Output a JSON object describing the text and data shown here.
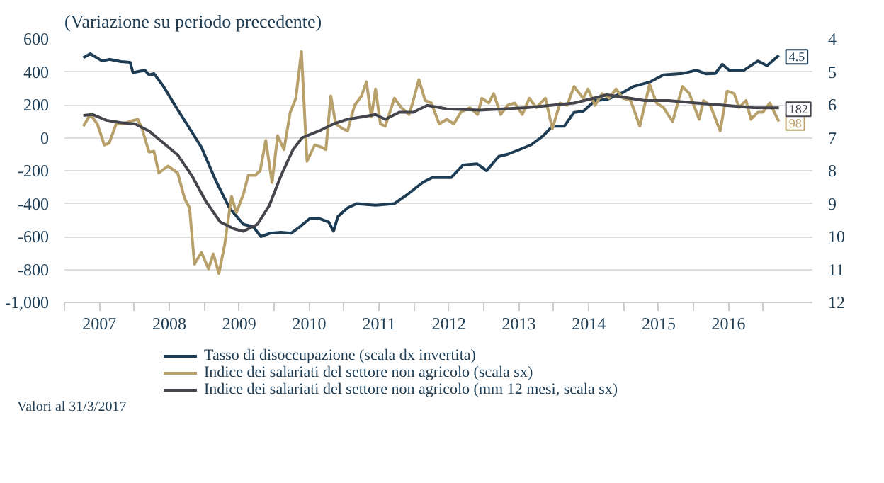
{
  "chart_data": {
    "type": "line",
    "title": "(Variazione su periodo precedente)",
    "annotations": [
      "Valori al 31/3/2017"
    ],
    "xlim": [
      2007,
      2017.7
    ],
    "xticks": [
      {
        "value": 2007,
        "label": null
      },
      {
        "value": 2007.5,
        "label": "2007"
      },
      {
        "value": 2008,
        "label": null
      },
      {
        "value": 2008.5,
        "label": "2008"
      },
      {
        "value": 2009,
        "label": null
      },
      {
        "value": 2009.5,
        "label": "2009"
      },
      {
        "value": 2010,
        "label": null
      },
      {
        "value": 2010.5,
        "label": "2010"
      },
      {
        "value": 2011,
        "label": null
      },
      {
        "value": 2011.5,
        "label": "2011"
      },
      {
        "value": 2012,
        "label": null
      },
      {
        "value": 2012.5,
        "label": "2012"
      },
      {
        "value": 2013,
        "label": null
      },
      {
        "value": 2013.5,
        "label": "2013"
      },
      {
        "value": 2014,
        "label": null
      },
      {
        "value": 2014.5,
        "label": "2014"
      },
      {
        "value": 2015,
        "label": null
      },
      {
        "value": 2015.5,
        "label": "2015"
      },
      {
        "value": 2016,
        "label": null
      },
      {
        "value": 2016.5,
        "label": "2016"
      },
      {
        "value": 2017,
        "label": null
      }
    ],
    "ylim": [
      -1000,
      600
    ],
    "yticks": [
      {
        "value": -1000,
        "label": "-1,000"
      },
      -800,
      -600,
      -400,
      -200,
      0,
      200,
      400,
      600
    ],
    "y2lim": [
      12,
      4
    ],
    "y2ticks": [
      4,
      5,
      6,
      7,
      8,
      9,
      10,
      11,
      12
    ],
    "grid": "y",
    "legend": "bottom",
    "line_style": "solid",
    "series": [
      {
        "name": "Tasso di disoccupazione (scala dx invertita)",
        "color": "#1e3d54",
        "axis": "y2",
        "x": [
          2007.27,
          2007.37,
          2007.54,
          2007.64,
          2007.81,
          2007.94,
          2007.98,
          2008.15,
          2008.21,
          2008.28,
          2008.42,
          2008.62,
          2008.75,
          2008.96,
          2009.16,
          2009.36,
          2009.56,
          2009.7,
          2009.81,
          2009.94,
          2010.1,
          2010.24,
          2010.37,
          2010.51,
          2010.64,
          2010.78,
          2010.85,
          2010.91,
          2011.05,
          2011.18,
          2011.45,
          2011.72,
          2011.92,
          2012.13,
          2012.26,
          2012.53,
          2012.7,
          2012.9,
          2013.04,
          2013.21,
          2013.34,
          2013.51,
          2013.68,
          2013.85,
          2013.98,
          2014.15,
          2014.29,
          2014.42,
          2014.59,
          2014.76,
          2014.96,
          2015.13,
          2015.37,
          2015.57,
          2015.84,
          2016.04,
          2016.18,
          2016.31,
          2016.41,
          2016.51,
          2016.72,
          2016.92,
          2017.05,
          2017.22
        ],
        "values": [
          4.57,
          4.45,
          4.67,
          4.62,
          4.69,
          4.71,
          5.02,
          4.95,
          5.09,
          5.05,
          5.45,
          6.15,
          6.58,
          7.29,
          8.28,
          9.13,
          9.63,
          9.7,
          10.0,
          9.9,
          9.87,
          9.9,
          9.7,
          9.45,
          9.45,
          9.56,
          9.84,
          9.4,
          9.13,
          9.0,
          9.05,
          9.0,
          8.7,
          8.35,
          8.21,
          8.21,
          7.83,
          7.79,
          8.0,
          7.57,
          7.5,
          7.36,
          7.21,
          6.94,
          6.65,
          6.65,
          6.23,
          6.2,
          5.87,
          5.84,
          5.66,
          5.45,
          5.31,
          5.09,
          5.05,
          4.95,
          5.06,
          5.05,
          4.77,
          4.95,
          4.95,
          4.67,
          4.81,
          4.5
        ],
        "value_labels": [
          null,
          null,
          null,
          null,
          null,
          null,
          null,
          null,
          null,
          null,
          null,
          null,
          null,
          null,
          null,
          null,
          null,
          null,
          null,
          null,
          null,
          null,
          null,
          null,
          null,
          null,
          null,
          null,
          null,
          null,
          null,
          null,
          null,
          null,
          null,
          null,
          null,
          null,
          null,
          null,
          null,
          null,
          null,
          null,
          null,
          null,
          null,
          null,
          null,
          null,
          null,
          null,
          null,
          null,
          null,
          null,
          null,
          null,
          null,
          null,
          null,
          null,
          null,
          "4.5"
        ]
      },
      {
        "name": "Indice dei salariati del settore non agricolo (scala sx)",
        "color": "#b8a06a",
        "x": [
          2007.27,
          2007.37,
          2007.47,
          2007.57,
          2007.64,
          2007.74,
          2007.84,
          2007.94,
          2008.05,
          2008.11,
          2008.21,
          2008.28,
          2008.35,
          2008.48,
          2008.62,
          2008.72,
          2008.79,
          2008.86,
          2008.96,
          2009.06,
          2009.13,
          2009.21,
          2009.29,
          2009.39,
          2009.46,
          2009.56,
          2009.63,
          2009.73,
          2009.8,
          2009.88,
          2009.97,
          2010.05,
          2010.14,
          2010.23,
          2010.31,
          2010.39,
          2010.47,
          2010.58,
          2010.68,
          2010.74,
          2010.81,
          2010.88,
          2010.98,
          2011.05,
          2011.15,
          2011.25,
          2011.32,
          2011.39,
          2011.45,
          2011.52,
          2011.59,
          2011.72,
          2011.82,
          2011.93,
          2011.99,
          2012.07,
          2012.16,
          2012.25,
          2012.36,
          2012.47,
          2012.57,
          2012.67,
          2012.8,
          2012.91,
          2012.97,
          2013.07,
          2013.14,
          2013.24,
          2013.34,
          2013.44,
          2013.55,
          2013.65,
          2013.75,
          2013.88,
          2013.98,
          2014.09,
          2014.19,
          2014.29,
          2014.42,
          2014.49,
          2014.59,
          2014.69,
          2014.79,
          2014.89,
          2014.99,
          2015.1,
          2015.23,
          2015.37,
          2015.47,
          2015.57,
          2015.7,
          2015.84,
          2015.94,
          2016.08,
          2016.14,
          2016.24,
          2016.38,
          2016.48,
          2016.58,
          2016.65,
          2016.75,
          2016.82,
          2016.92,
          2016.99,
          2017.09,
          2017.22
        ],
        "values": [
          70,
          141,
          84,
          -44,
          -33,
          84,
          84,
          100,
          112,
          55,
          -87,
          -82,
          -214,
          -172,
          -214,
          -370,
          -427,
          -768,
          -697,
          -796,
          -706,
          -824,
          -654,
          -356,
          -455,
          -342,
          -228,
          -228,
          -200,
          -16,
          -271,
          13,
          -72,
          155,
          240,
          523,
          -143,
          -44,
          -58,
          -72,
          254,
          84,
          55,
          41,
          197,
          254,
          339,
          126,
          296,
          84,
          70,
          240,
          183,
          141,
          226,
          353,
          226,
          211,
          84,
          112,
          84,
          155,
          183,
          141,
          240,
          211,
          268,
          141,
          197,
          211,
          141,
          240,
          183,
          240,
          55,
          211,
          197,
          311,
          240,
          296,
          197,
          268,
          240,
          296,
          240,
          226,
          70,
          325,
          211,
          183,
          98,
          311,
          268,
          112,
          226,
          197,
          41,
          283,
          268,
          183,
          226,
          112,
          155,
          155,
          211,
          98
        ],
        "value_labels": [
          null,
          null,
          null,
          null,
          null,
          null,
          null,
          null,
          null,
          null,
          null,
          null,
          null,
          null,
          null,
          null,
          null,
          null,
          null,
          null,
          null,
          null,
          null,
          null,
          null,
          null,
          null,
          null,
          null,
          null,
          null,
          null,
          null,
          null,
          null,
          null,
          null,
          null,
          null,
          null,
          null,
          null,
          null,
          null,
          null,
          null,
          null,
          null,
          null,
          null,
          null,
          null,
          null,
          null,
          null,
          null,
          null,
          null,
          null,
          null,
          null,
          null,
          null,
          null,
          null,
          null,
          null,
          null,
          null,
          null,
          null,
          null,
          null,
          null,
          null,
          null,
          null,
          null,
          null,
          null,
          null,
          null,
          null,
          null,
          null,
          null,
          null,
          null,
          null,
          null,
          null,
          null,
          null,
          null,
          null,
          null,
          null,
          null,
          null,
          null,
          null,
          null,
          null,
          null,
          null,
          "98"
        ]
      },
      {
        "name": "Indice dei salariati del settore non agricolo (mm 12 mesi, scala sx)",
        "color": "#45454d",
        "x": [
          2007.27,
          2007.4,
          2007.6,
          2007.81,
          2008.01,
          2008.21,
          2008.42,
          2008.62,
          2008.82,
          2009.02,
          2009.23,
          2009.43,
          2009.56,
          2009.76,
          2009.93,
          2010.1,
          2010.27,
          2010.4,
          2010.64,
          2010.85,
          2011.05,
          2011.25,
          2011.45,
          2011.59,
          2011.79,
          2011.99,
          2012.19,
          2012.47,
          2012.94,
          2013.61,
          2014.29,
          2014.76,
          2014.96,
          2015.3,
          2015.64,
          2016.04,
          2016.45,
          2016.85,
          2017.22
        ],
        "values": [
          135,
          141,
          106,
          91,
          84,
          41,
          -33,
          -104,
          -228,
          -384,
          -512,
          -554,
          -568,
          -526,
          -412,
          -228,
          -72,
          0,
          41,
          84,
          112,
          126,
          141,
          112,
          155,
          155,
          197,
          175,
          168,
          183,
          211,
          260,
          248,
          226,
          226,
          211,
          197,
          183,
          182
        ],
        "value_labels": [
          null,
          null,
          null,
          null,
          null,
          null,
          null,
          null,
          null,
          null,
          null,
          null,
          null,
          null,
          null,
          null,
          null,
          null,
          null,
          null,
          null,
          null,
          null,
          null,
          null,
          null,
          null,
          null,
          null,
          null,
          null,
          null,
          null,
          null,
          null,
          null,
          null,
          null,
          "182"
        ]
      }
    ]
  }
}
